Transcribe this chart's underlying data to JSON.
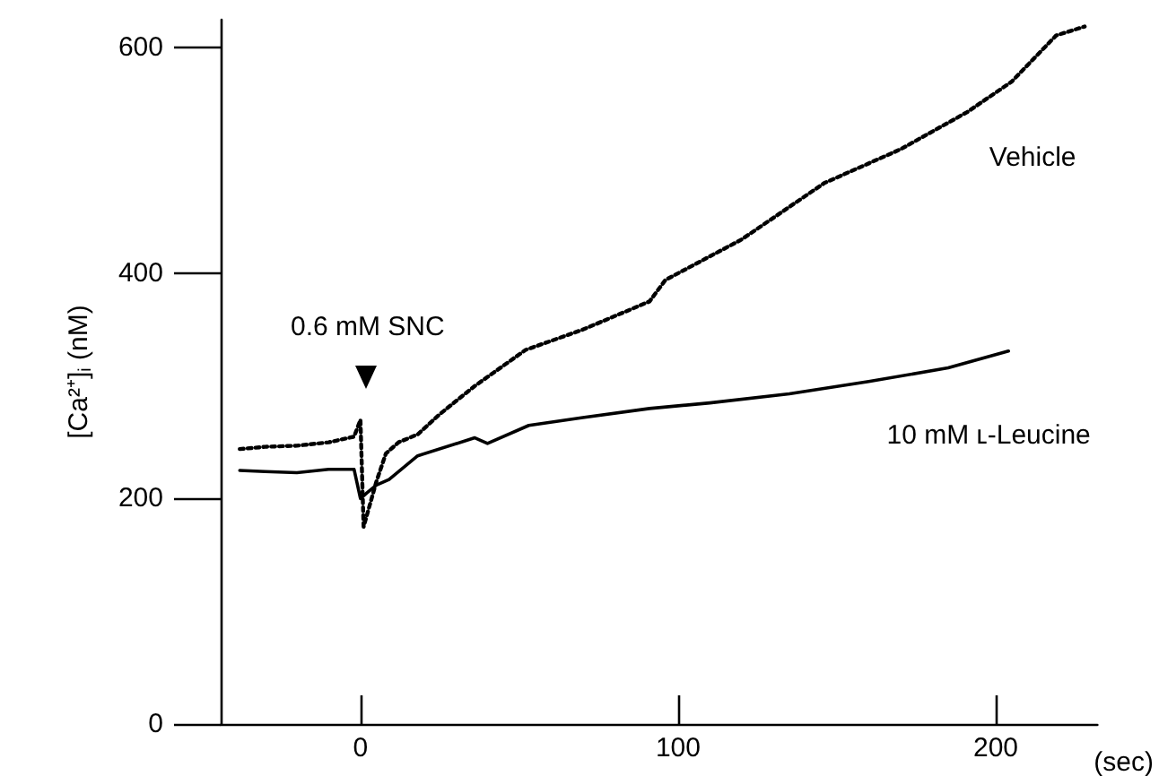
{
  "chart_data": {
    "type": "line",
    "ylabel": "[Ca²⁺]$_{i}$ (nM)",
    "xlabel": "(sec)",
    "xlim": [
      -44,
      232
    ],
    "xticks": [
      0,
      100,
      200
    ],
    "ylim": [
      0,
      625
    ],
    "yticks": [
      0,
      200,
      400,
      600
    ],
    "grid": false,
    "legend": false,
    "marker": "none",
    "annotations": [
      "0.6 mM SNC"
    ],
    "series": [
      {
        "name": "Vehicle",
        "color": "#000000",
        "line_style": "dotted",
        "x": [
          -38,
          -30,
          -20,
          -10,
          -2,
          0,
          1,
          3,
          5,
          8,
          12,
          18,
          25,
          36,
          52,
          70,
          91,
          96,
          120,
          146,
          170,
          191,
          205,
          219,
          228
        ],
        "values": [
          244,
          246,
          247,
          250,
          255,
          270,
          175,
          195,
          215,
          240,
          250,
          257,
          275,
          300,
          332,
          350,
          375,
          394,
          430,
          480,
          510,
          543,
          570,
          611,
          619
        ]
      },
      {
        "name": "10 mM ʟ-Leucine",
        "color": "#000000",
        "line_style": "solid",
        "x": [
          -38,
          -30,
          -20,
          -10,
          -2,
          0,
          2,
          5,
          9,
          18,
          36,
          40,
          53,
          70,
          91,
          110,
          135,
          160,
          185,
          204
        ],
        "values": [
          225,
          224,
          223,
          226,
          226,
          200,
          205,
          212,
          217,
          238,
          254,
          249,
          265,
          272,
          280,
          285,
          293,
          304,
          316,
          331
        ]
      }
    ]
  }
}
